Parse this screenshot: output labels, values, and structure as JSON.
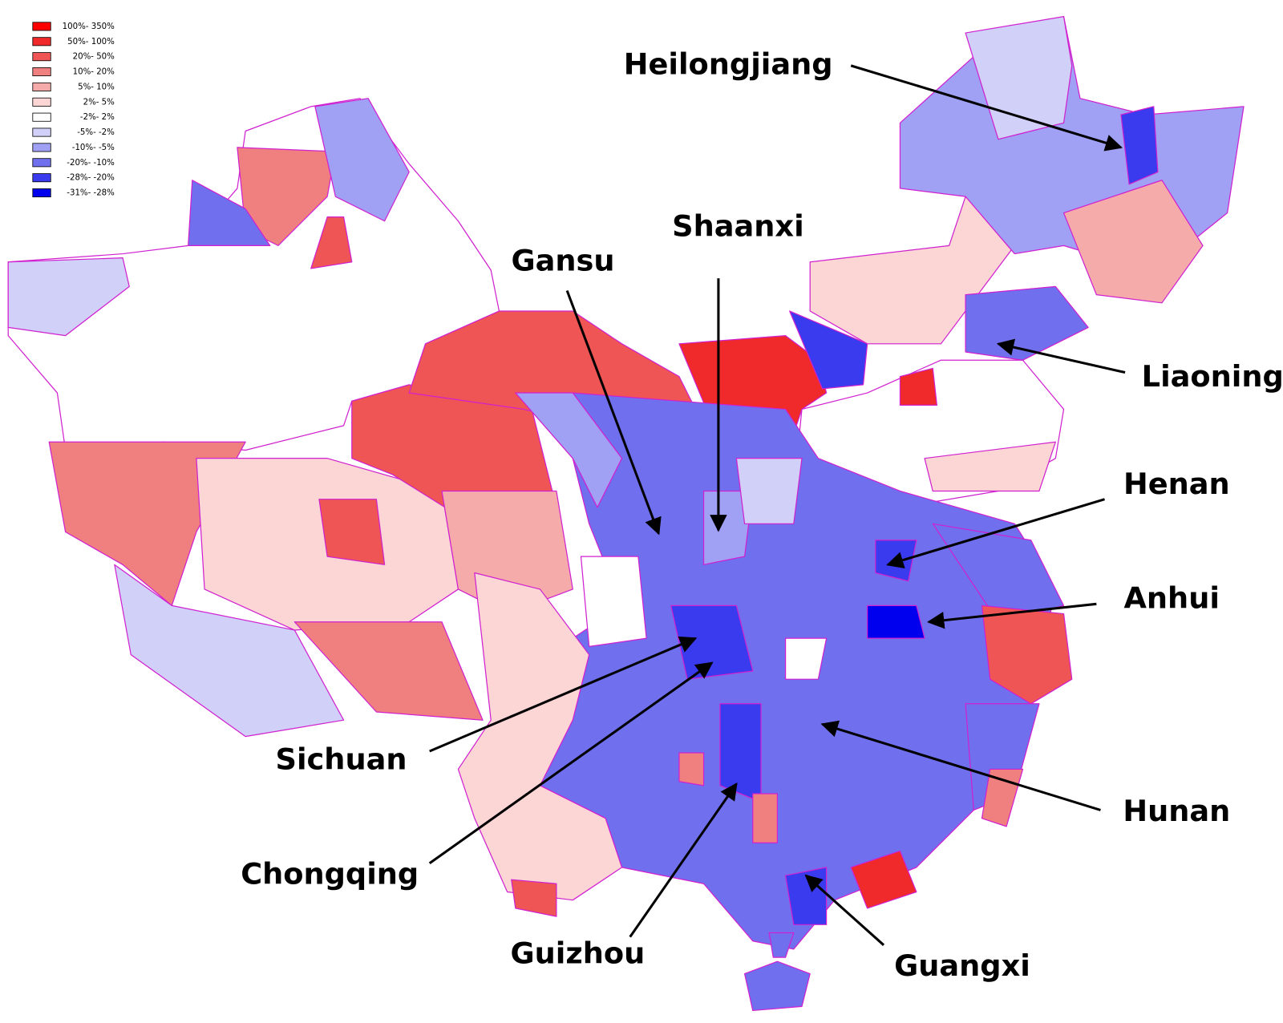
{
  "legend": {
    "items": [
      {
        "label": "100%- 350%",
        "color": "#ff0000"
      },
      {
        "label": "50%- 100%",
        "color": "#f02a2a"
      },
      {
        "label": "20%- 50%",
        "color": "#f05555"
      },
      {
        "label": "10%- 20%",
        "color": "#f08080"
      },
      {
        "label": "5%- 10%",
        "color": "#f6abab"
      },
      {
        "label": "2%- 5%",
        "color": "#fcd5d5"
      },
      {
        "label": "-2%- 2%",
        "color": "#ffffff"
      },
      {
        "label": "-5%- -2%",
        "color": "#d0d0f8"
      },
      {
        "label": "-10%- -5%",
        "color": "#a0a0f4"
      },
      {
        "label": "-20%- -10%",
        "color": "#7070ee"
      },
      {
        "label": "-28%- -20%",
        "color": "#3a3aee"
      },
      {
        "label": "-31%- -28%",
        "color": "#0000ee"
      }
    ]
  },
  "labels": [
    {
      "text": "Heilongjiang"
    },
    {
      "text": "Shaanxi"
    },
    {
      "text": "Gansu"
    },
    {
      "text": "Liaoning"
    },
    {
      "text": "Henan"
    },
    {
      "text": "Anhui"
    },
    {
      "text": "Sichuan"
    },
    {
      "text": "Chongqing"
    },
    {
      "text": "Guizhou"
    },
    {
      "text": "Hunan"
    },
    {
      "text": "Guangxi"
    }
  ]
}
